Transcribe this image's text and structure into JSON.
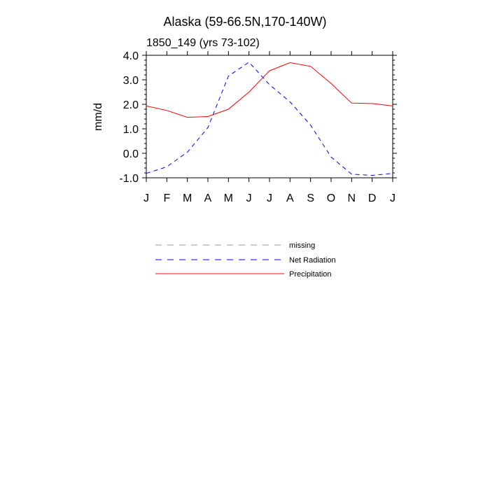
{
  "chart_data": {
    "type": "line",
    "title": "Alaska (59-66.5N,170-140W)",
    "subtitle": "1850_149 (yrs 73-102)",
    "ylabel": "mm/d",
    "xlabel": "",
    "categories": [
      "J",
      "F",
      "M",
      "A",
      "M",
      "J",
      "J",
      "A",
      "S",
      "O",
      "N",
      "D",
      "J"
    ],
    "ylim": [
      -1.0,
      4.0
    ],
    "yticks": [
      -1.0,
      0.0,
      1.0,
      2.0,
      3.0,
      4.0
    ],
    "ytick_labels": [
      "-1.0",
      "0.0",
      "1.0",
      "2.0",
      "3.0",
      "4.0"
    ],
    "grid": false,
    "series": [
      {
        "name": "Net Radiation",
        "color": "#0000ff",
        "dash": "dashed",
        "values": [
          -0.82,
          -0.55,
          0.05,
          1.05,
          3.15,
          3.72,
          2.8,
          2.1,
          1.15,
          -0.15,
          -0.85,
          -0.9,
          -0.82
        ]
      },
      {
        "name": "Precipitation",
        "color": "#ff0000",
        "dash": "solid",
        "values": [
          1.93,
          1.75,
          1.47,
          1.5,
          1.8,
          2.5,
          3.37,
          3.7,
          3.55,
          2.85,
          2.05,
          2.03,
          1.93
        ]
      }
    ],
    "legend": {
      "placement": "below-chart",
      "entries": [
        {
          "label": "missing",
          "color": "#999999",
          "dash": "dashed"
        },
        {
          "label": "Net Radiation",
          "color": "#0000ff",
          "dash": "dashed"
        },
        {
          "label": "Precipitation",
          "color": "#ff0000",
          "dash": "solid"
        }
      ]
    }
  }
}
